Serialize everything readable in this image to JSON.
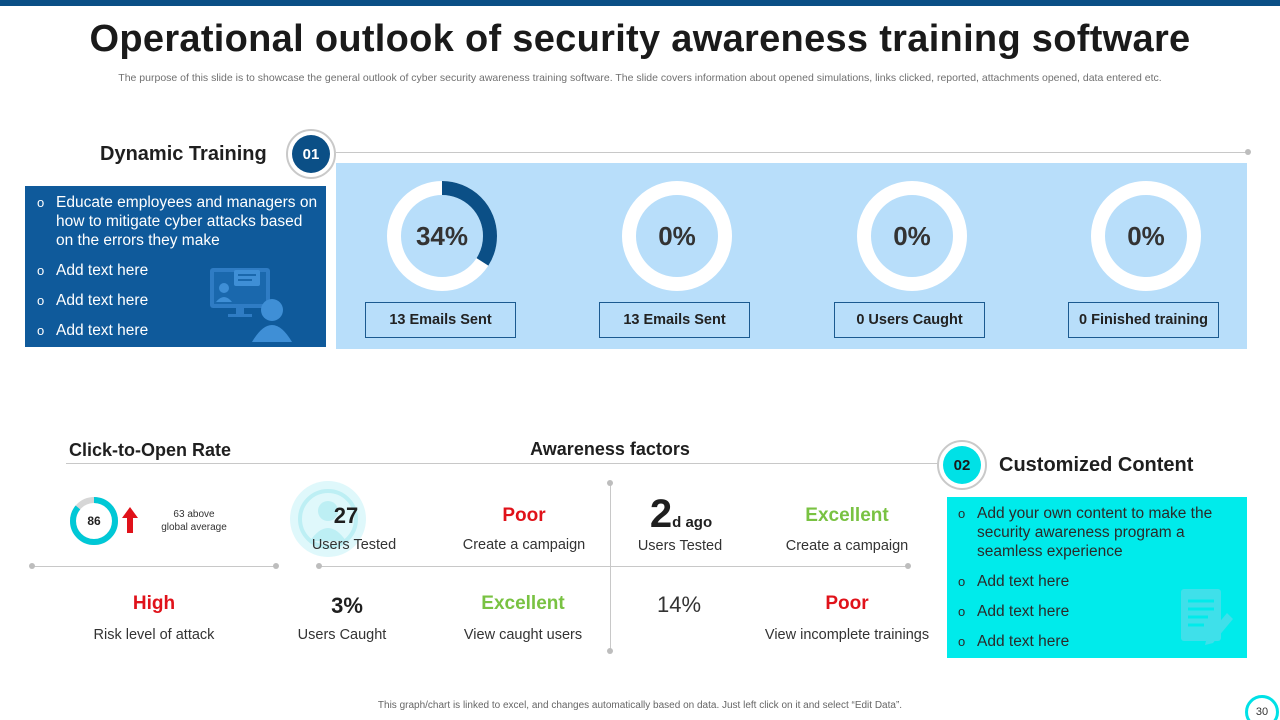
{
  "header": {
    "title": "Operational outlook of security awareness training software",
    "subtitle": "The purpose of this slide is to showcase the general outlook of cyber security awareness training software. The slide covers information about opened simulations, links clicked, reported, attachments opened, data entered etc."
  },
  "colors": {
    "dark_blue": "#0f5a9b",
    "light_blue": "#b8defa",
    "cyan": "#00ebeb",
    "red": "#e0121a",
    "green": "#79c242"
  },
  "section1": {
    "title": "Dynamic Training",
    "badge": "01",
    "bullets": [
      "Educate employees and managers on how to mitigate cyber attacks based on the errors they make",
      "Add text here",
      "Add text here",
      "Add text here"
    ],
    "icon": "online-training-icon",
    "metrics": [
      {
        "percent_label": "34%",
        "fraction": 0.34,
        "label": "13 Emails Sent"
      },
      {
        "percent_label": "0%",
        "fraction": 0,
        "label": "13 Emails Sent"
      },
      {
        "percent_label": "0%",
        "fraction": 0,
        "label": "0 Users Caught"
      },
      {
        "percent_label": "0%",
        "fraction": 0,
        "label": "0 Finished training"
      }
    ]
  },
  "section2": {
    "click_rate": {
      "title": "Click-to-Open Rate",
      "value": "86",
      "fraction": 0.86,
      "note_line1": "63 above",
      "note_line2": "global average",
      "arrow_icon": "up-arrow-icon"
    },
    "awareness": {
      "title": "Awareness factors",
      "users_tested_1": {
        "value": "27",
        "label": "Users Tested"
      },
      "campaign_poor": {
        "value": "Poor",
        "label": "Create a campaign"
      },
      "days_ago": {
        "value": "2",
        "suffix": "d ago",
        "label": "Users Tested"
      },
      "campaign_excellent": {
        "value": "Excellent",
        "label": "Create a campaign"
      },
      "risk": {
        "value": "High",
        "label": "Risk level of attack"
      },
      "users_caught": {
        "value": "3%",
        "label": "Users Caught"
      },
      "view_caught": {
        "value": "Excellent",
        "label": "View caught users"
      },
      "pct14": {
        "value": "14%"
      },
      "incomplete": {
        "value": "Poor",
        "label": "View incomplete trainings"
      }
    },
    "custom": {
      "title": "Customized Content",
      "badge": "02",
      "bullets": [
        "Add your own content to make the security awareness program a seamless experience",
        "Add text here",
        "Add text here",
        "Add text here"
      ],
      "icon": "document-edit-icon"
    }
  },
  "footer": {
    "note": "This graph/chart is linked to excel, and changes automatically based on data. Just left click on it and select “Edit Data”.",
    "page": "30"
  }
}
